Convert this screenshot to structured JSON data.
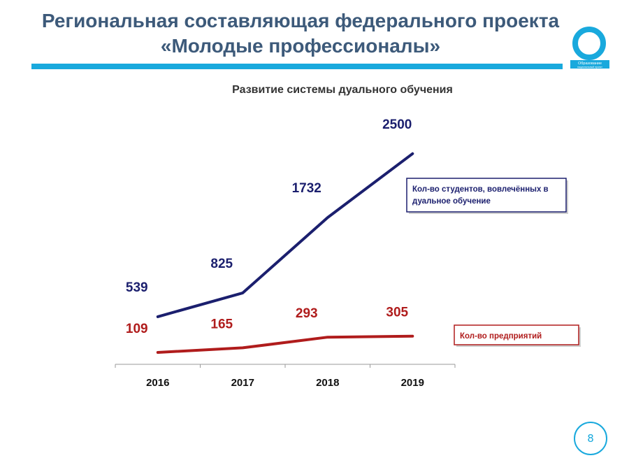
{
  "slide": {
    "title_line1": "Региональная составляющая федерального проекта",
    "title_line2": "«Молодые профессионалы»",
    "page_number": "8"
  },
  "logo": {
    "icon": "obrazovanie-ring-logo",
    "text": "Образование",
    "subtext": "национальный проект",
    "color": "#19a9dd"
  },
  "colors": {
    "accent": "#19a9dd",
    "title": "#3d5a7a",
    "students_series": "#1b1f6e",
    "enterprises_series": "#b01c1c"
  },
  "chart_data": {
    "type": "line",
    "title": "Развитие системы дуального обучения",
    "categories": [
      "2016",
      "2017",
      "2018",
      "2019"
    ],
    "series": [
      {
        "name": "Кол-во студентов, вовлечённых в дуальное обучение",
        "values": [
          539,
          825,
          1732,
          2500
        ],
        "labels": [
          "539",
          "825",
          "1732",
          "2500"
        ],
        "color": "#1b1f6e",
        "legend_lines": [
          "Кол-во студентов, вовлечённых в",
          "дуальное обучение"
        ]
      },
      {
        "name": "Кол-во предприятий",
        "values": [
          109,
          165,
          293,
          305
        ],
        "labels": [
          "109",
          "165",
          "293",
          "305"
        ],
        "color": "#b01c1c",
        "legend_lines": [
          "Кол-во предприятий"
        ]
      }
    ],
    "xlabel": "",
    "ylabel": "",
    "y_axis_visible": false,
    "grid": false,
    "legend": "right"
  }
}
